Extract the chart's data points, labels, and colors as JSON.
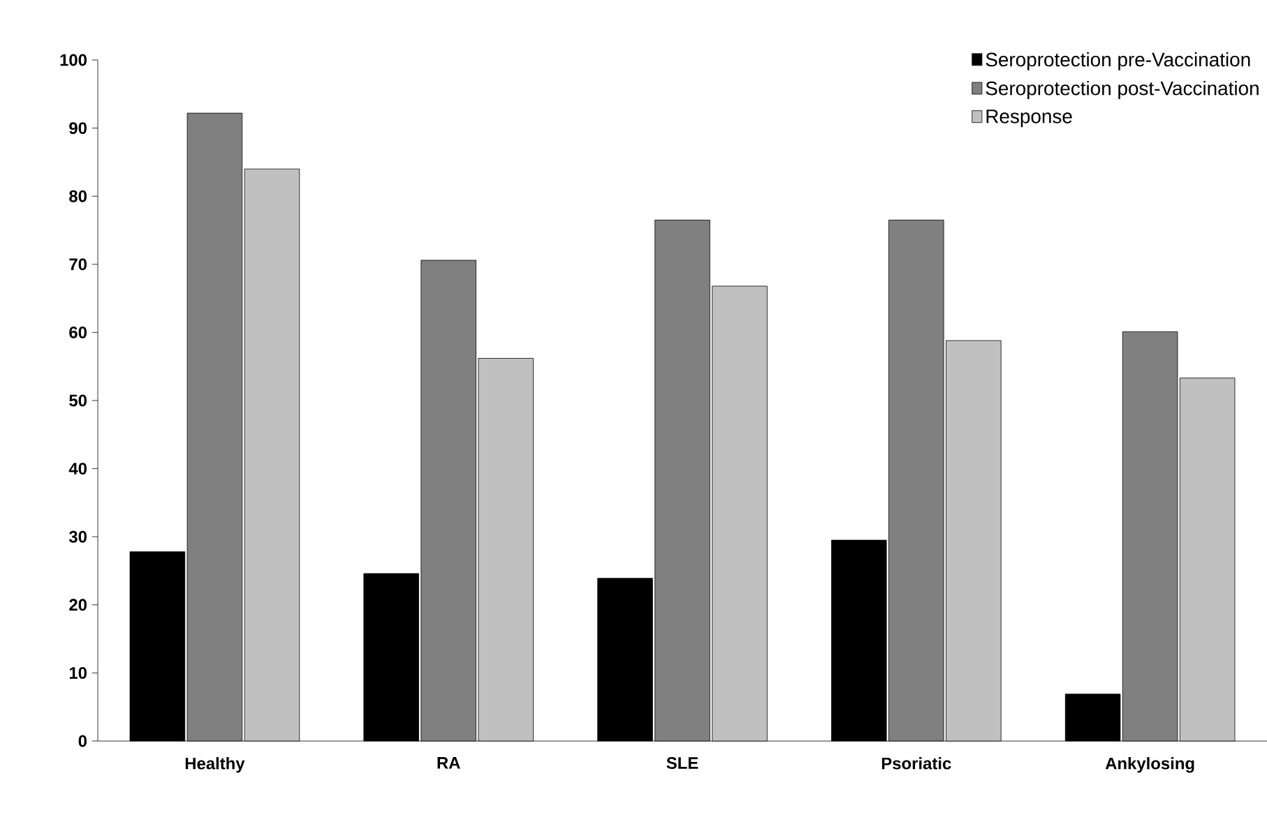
{
  "chart_data": {
    "type": "bar",
    "categories": [
      "Healthy",
      "RA",
      "SLE",
      "Psoriatic",
      "Ankylosing"
    ],
    "series": [
      {
        "name": "Seroprotection pre-Vaccination",
        "color": "#000000",
        "values": [
          27.8,
          24.6,
          23.9,
          29.5,
          6.9
        ]
      },
      {
        "name": "Seroprotection post-Vaccination",
        "color": "#808080",
        "values": [
          92.2,
          70.6,
          76.5,
          76.5,
          60.1
        ]
      },
      {
        "name": "Response",
        "color": "#c0c0c0",
        "values": [
          84.0,
          56.2,
          66.8,
          58.8,
          53.3
        ]
      }
    ],
    "ylim": [
      0,
      100
    ],
    "yticks": [
      0,
      10,
      20,
      30,
      40,
      50,
      60,
      70,
      80,
      90,
      100
    ],
    "grid": false,
    "legend": "top right"
  }
}
